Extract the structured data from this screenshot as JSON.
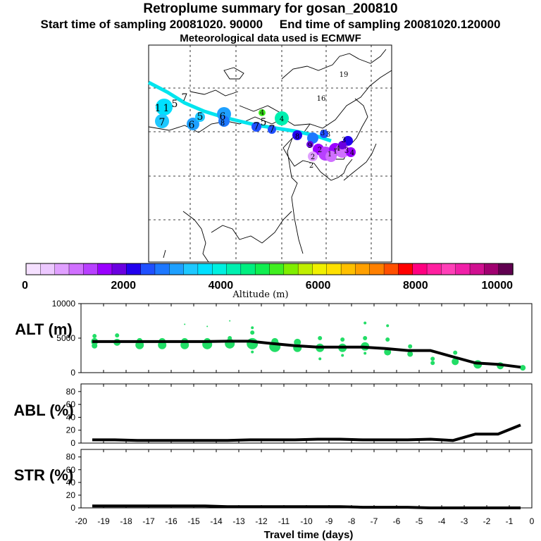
{
  "header": {
    "title": "Retroplume summary for gosan_200810",
    "start_label": "Start time of sampling 20081020. 90000",
    "end_label": "End time of sampling 20081020.120000",
    "met_label": "Meteorological data used is ECMWF"
  },
  "colors": {
    "track": "#00e5ee",
    "curve": "#000000",
    "scatter": "#22dd66",
    "colorbar": [
      "#f5e0ff",
      "#ecc8ff",
      "#e0a0ff",
      "#d070ff",
      "#b840ff",
      "#9a00ff",
      "#6a00e0",
      "#2200ee",
      "#2050ff",
      "#1e78ff",
      "#1ea0ff",
      "#1ec8ff",
      "#00e0ff",
      "#00f0e0",
      "#00f0b0",
      "#00ee80",
      "#10ee50",
      "#40ee20",
      "#80ee00",
      "#c0ee00",
      "#f0f000",
      "#ffe000",
      "#ffc000",
      "#ffa000",
      "#ff8000",
      "#ff5000",
      "#ff0000",
      "#ff0080",
      "#ff20a0",
      "#ff40b8",
      "#f020a8",
      "#d01090",
      "#a00070",
      "#600050"
    ]
  },
  "colorbar": {
    "ticks": [
      "0",
      "2000",
      "4000",
      "6000",
      "8000",
      "10000"
    ],
    "label": "Altitude (m)"
  },
  "map_labels": [
    "1",
    "1",
    "5",
    "7",
    "7",
    "6",
    "5",
    "6",
    "8",
    "4",
    "7",
    "5",
    "4",
    "7",
    "8",
    "3",
    "3",
    "3",
    "9",
    "2",
    "1",
    "1",
    "2",
    "2",
    "3",
    "4",
    "4",
    "19",
    "16"
  ],
  "chart_data": [
    {
      "type": "line",
      "panel": "ALT",
      "ylabel": "ALT (m)",
      "ylim": [
        0,
        10000
      ],
      "yticks": [
        "0",
        "5000",
        "10000"
      ],
      "x": [
        -19.5,
        -18.5,
        -17.5,
        -16.5,
        -15.5,
        -14.5,
        -13.5,
        -12.5,
        -11.5,
        -10.5,
        -9.5,
        -8.5,
        -7.5,
        -6.5,
        -5.5,
        -4.5,
        -3.5,
        -2.5,
        -1.5,
        -0.5
      ],
      "values": [
        4500,
        4500,
        4500,
        4500,
        4500,
        4500,
        4550,
        4550,
        4200,
        3900,
        3700,
        3700,
        3700,
        3500,
        3200,
        3200,
        2300,
        1400,
        1200,
        800
      ],
      "scatter": {
        "x": [
          -19.4,
          -19.4,
          -19.4,
          -18.4,
          -18.4,
          -17.4,
          -17.4,
          -16.4,
          -16.4,
          -15.4,
          -15.4,
          -15.4,
          -14.4,
          -14.4,
          -14.4,
          -13.4,
          -13.4,
          -13.4,
          -12.4,
          -12.4,
          -12.4,
          -12.4,
          -11.4,
          -11.4,
          -10.4,
          -10.4,
          -9.4,
          -9.4,
          -9.4,
          -8.4,
          -8.4,
          -8.4,
          -7.4,
          -7.4,
          -7.4,
          -7.4,
          -6.4,
          -6.4,
          -6.4,
          -5.4,
          -5.4,
          -4.4,
          -4.4,
          -4.4,
          -3.4,
          -3.4,
          -2.4,
          -1.4,
          -0.4
        ],
        "y": [
          5300,
          4500,
          3900,
          5400,
          4400,
          4600,
          4000,
          4500,
          4000,
          7000,
          4500,
          4000,
          6700,
          4500,
          4100,
          7500,
          5000,
          4200,
          6500,
          5800,
          4200,
          3000,
          4500,
          3800,
          4400,
          3600,
          5000,
          3600,
          2000,
          4800,
          3600,
          2500,
          7200,
          5000,
          3800,
          2800,
          6800,
          4800,
          3000,
          3800,
          2700,
          3100,
          2000,
          1400,
          2900,
          1600,
          1200,
          1000,
          700
        ],
        "sizes": [
          3,
          5,
          4,
          3,
          5,
          4,
          6,
          5,
          6,
          1,
          5,
          6,
          1,
          5,
          7,
          1,
          3,
          7,
          2,
          3,
          8,
          2,
          5,
          8,
          5,
          6,
          3,
          6,
          2,
          3,
          6,
          2,
          2,
          3,
          6,
          2,
          2,
          3,
          5,
          3,
          4,
          2,
          3,
          3,
          3,
          5,
          6,
          5,
          4
        ]
      }
    },
    {
      "type": "line",
      "panel": "ABL",
      "ylabel": "ABL (%)",
      "ylim": [
        0,
        90
      ],
      "yticks": [
        "0",
        "20",
        "40",
        "60",
        "80"
      ],
      "x": [
        -19.5,
        -18.5,
        -17.5,
        -16.5,
        -15.5,
        -14.5,
        -13.5,
        -12.5,
        -11.5,
        -10.5,
        -9.5,
        -8.5,
        -7.5,
        -6.5,
        -5.5,
        -4.5,
        -3.5,
        -2.5,
        -1.5,
        -0.5
      ],
      "values": [
        5,
        5,
        4,
        4,
        4,
        4,
        4,
        5,
        5,
        5,
        6,
        6,
        5,
        5,
        5,
        6,
        4,
        14,
        14,
        28
      ]
    },
    {
      "type": "line",
      "panel": "STR",
      "ylabel": "STR (%)",
      "ylim": [
        0,
        90
      ],
      "yticks": [
        "0",
        "20",
        "40",
        "60",
        "80"
      ],
      "x": [
        -19.5,
        -18.5,
        -17.5,
        -16.5,
        -15.5,
        -14.5,
        -13.5,
        -12.5,
        -11.5,
        -10.5,
        -9.5,
        -8.5,
        -7.5,
        -6.5,
        -5.5,
        -4.5,
        -3.5,
        -2.5,
        -1.5,
        -0.5
      ],
      "values": [
        3,
        3,
        3,
        3,
        3,
        3,
        2,
        2,
        2,
        2,
        2,
        2,
        1,
        1,
        1,
        0,
        0,
        0,
        0,
        0
      ]
    }
  ],
  "xaxis": {
    "ticks": [
      "-20",
      "-19",
      "-18",
      "-17",
      "-16",
      "-15",
      "-14",
      "-13",
      "-12",
      "-11",
      "-10",
      "-9",
      "-8",
      "-7",
      "-6",
      "-5",
      "-4",
      "-3",
      "-2",
      "-1",
      "0"
    ],
    "label": "Travel time (days)"
  }
}
